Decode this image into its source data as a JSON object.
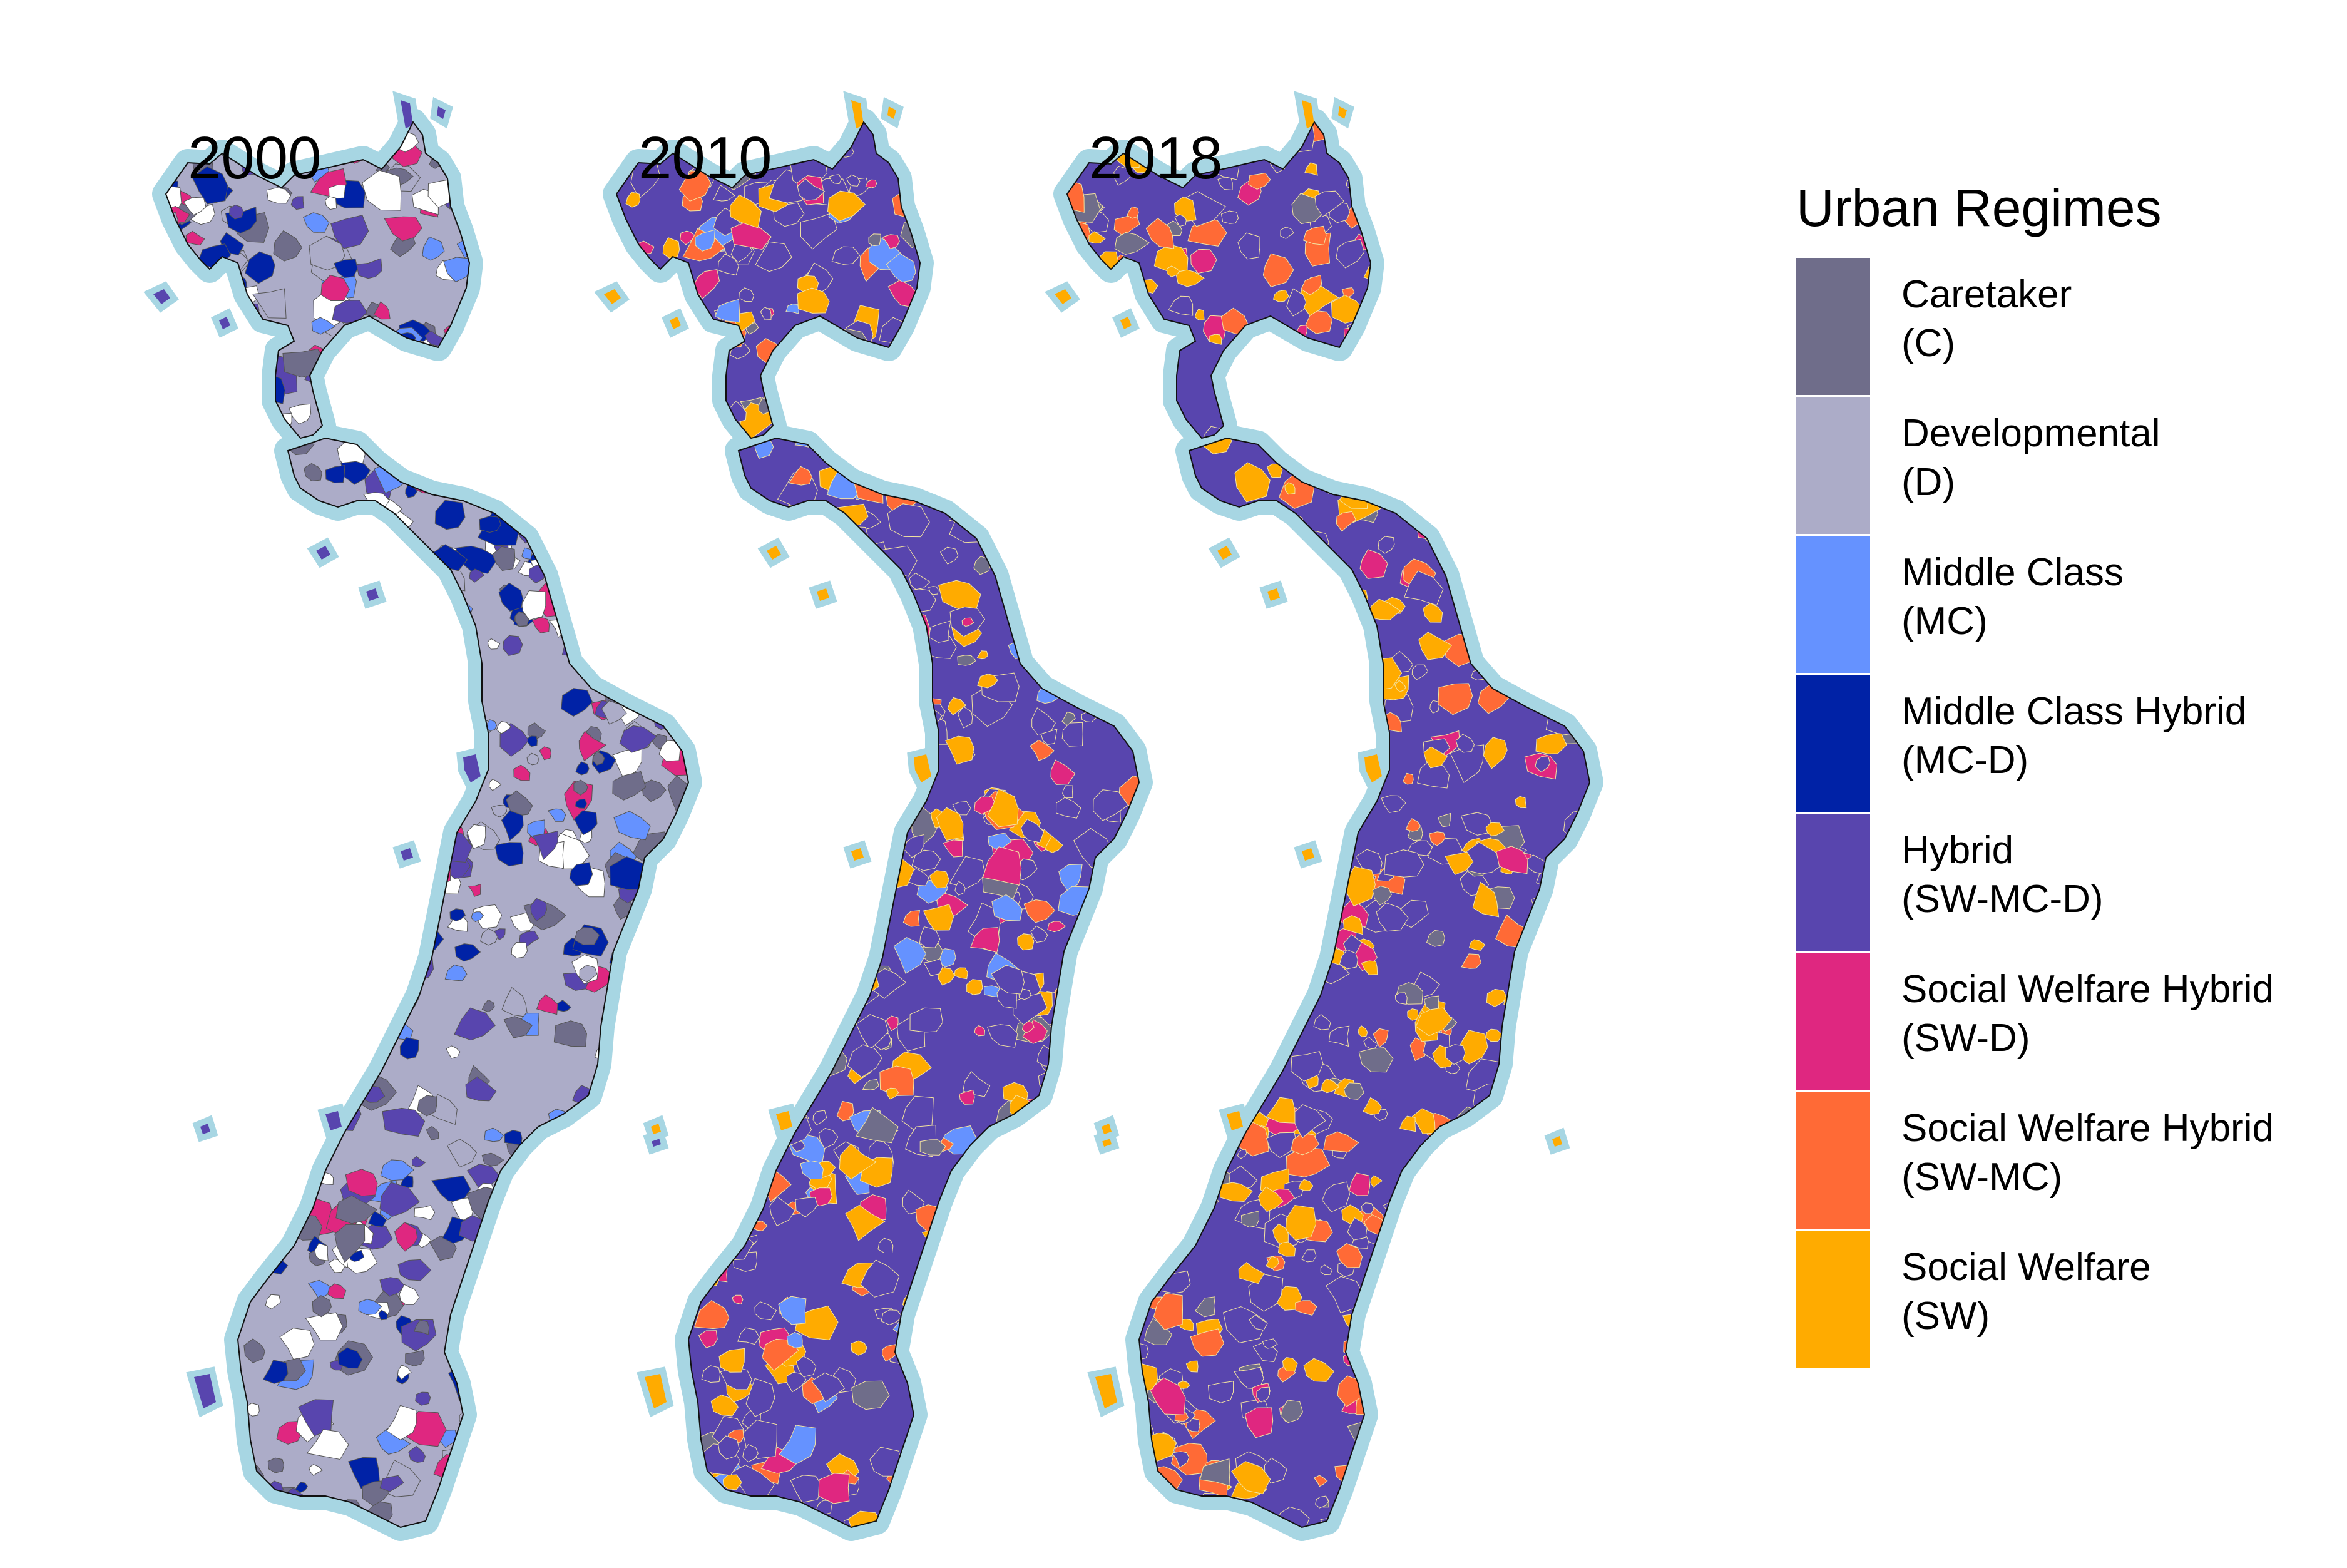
{
  "panels": [
    {
      "year": "2000",
      "palette": [
        "#ffffff",
        "#ffffff",
        "#0022a6",
        "#0022a6",
        "#5845ae",
        "#5845ae",
        "#acacc8",
        "#6f6d8a",
        "#6f6d8a",
        "#6592ff",
        "#df2780"
      ]
    },
    {
      "year": "2010",
      "palette": [
        "#5845ae",
        "#5845ae",
        "#5845ae",
        "#5845ae",
        "#ffab00",
        "#ffab00",
        "#ff6a36",
        "#df2780",
        "#6f6d8a",
        "#6592ff",
        "#5845ae"
      ]
    },
    {
      "year": "2018",
      "palette": [
        "#5845ae",
        "#5845ae",
        "#5845ae",
        "#ffab00",
        "#ffab00",
        "#ff6a36",
        "#ff6a36",
        "#df2780",
        "#6f6d8a",
        "#5845ae",
        "#ffab00"
      ]
    }
  ],
  "legend": {
    "title": "Urban Regimes",
    "items": [
      {
        "name": "Caretaker",
        "code": "(C)",
        "color": "#6f6d8a"
      },
      {
        "name": "Developmental",
        "code": "(D)",
        "color": "#acacc8"
      },
      {
        "name": "Middle Class",
        "code": "(MC)",
        "color": "#6592ff"
      },
      {
        "name": "Middle Class Hybrid",
        "code": "(MC-D)",
        "color": "#0022a6"
      },
      {
        "name": "Hybrid",
        "code": "(SW-MC-D)",
        "color": "#5845ae"
      },
      {
        "name": "Social Welfare Hybrid",
        "code": "(SW-D)",
        "color": "#df2780"
      },
      {
        "name": "Social Welfare Hybrid",
        "code": "(SW-MC)",
        "color": "#ff6a36"
      },
      {
        "name": "Social Welfare",
        "code": "(SW)",
        "color": "#ffab00"
      }
    ]
  },
  "colors": {
    "coast": "#a7d6e3",
    "outline": "#111111"
  }
}
